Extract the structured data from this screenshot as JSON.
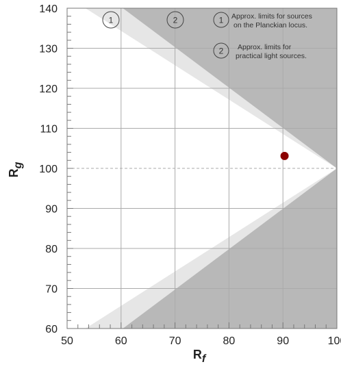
{
  "chart_data": {
    "type": "scatter",
    "xlabel": {
      "main": "R",
      "sub": "f"
    },
    "ylabel": {
      "main": "R",
      "sub": "g"
    },
    "xlim": [
      50,
      100
    ],
    "ylim": [
      60,
      140
    ],
    "xticks": [
      50,
      60,
      70,
      80,
      90,
      100
    ],
    "yticks": [
      60,
      70,
      80,
      90,
      100,
      110,
      120,
      130,
      140
    ],
    "x_tick_labels": [
      "50",
      "60",
      "70",
      "80",
      "90",
      "100"
    ],
    "y_tick_labels": [
      "60",
      "70",
      "80",
      "90",
      "100",
      "110",
      "120",
      "130",
      "140"
    ],
    "grid": true,
    "reference_line_y": 100,
    "regions": [
      {
        "id": "1",
        "description": "Approx. limits for sources on the Planckian locus.",
        "color": "#e6e6e6"
      },
      {
        "id": "2",
        "description": "Approx. limits for practical light sources.",
        "color": "#ffffff"
      }
    ],
    "outer_color": "#b8b8b8",
    "points": [
      {
        "x": 90.3,
        "y": 103.1,
        "color": "#8b0000"
      }
    ],
    "legend": [
      {
        "id": "1",
        "lines": [
          "Approx. limits for sources",
          "on the Planckian locus."
        ]
      },
      {
        "id": "2",
        "lines": [
          "Approx. limits for",
          "practical light sources."
        ]
      }
    ],
    "region_labels": [
      {
        "id": "1"
      },
      {
        "id": "2"
      }
    ]
  }
}
